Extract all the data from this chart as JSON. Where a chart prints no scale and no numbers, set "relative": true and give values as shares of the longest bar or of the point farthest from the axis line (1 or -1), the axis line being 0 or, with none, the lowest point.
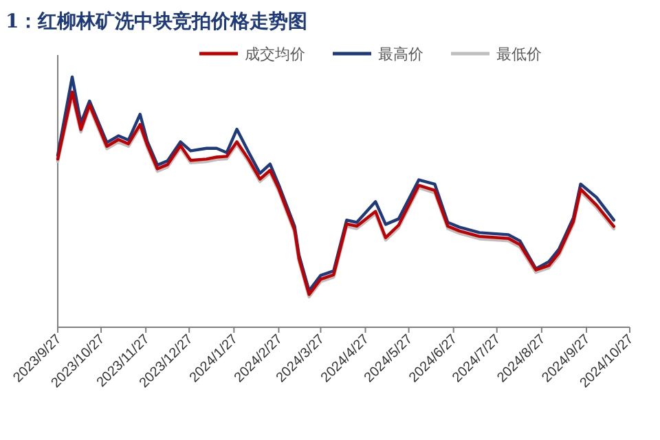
{
  "chart_data": {
    "type": "line",
    "title": "1：红柳林矿洗中块竞拍价格走势图",
    "relative": true,
    "legend": "top",
    "x": [
      "2023-09-27",
      "2023-10-07",
      "2023-10-13",
      "2023-10-19",
      "2023-10-31",
      "2023-11-08",
      "2023-11-15",
      "2023-11-23",
      "2023-11-28",
      "2023-12-05",
      "2023-12-12",
      "2023-12-21",
      "2023-12-28",
      "2024-01-08",
      "2024-01-15",
      "2024-01-22",
      "2024-01-29",
      "2024-02-06",
      "2024-02-14",
      "2024-02-21",
      "2024-02-27",
      "2024-03-09",
      "2024-03-12",
      "2024-03-19",
      "2024-03-27",
      "2024-04-05",
      "2024-04-14",
      "2024-04-21",
      "2024-05-04",
      "2024-05-11",
      "2024-05-20",
      "2024-06-03",
      "2024-06-14",
      "2024-06-23",
      "2024-07-01",
      "2024-07-15",
      "2024-08-04",
      "2024-08-12",
      "2024-08-23",
      "2024-09-01",
      "2024-09-08",
      "2024-09-18",
      "2024-09-23",
      "2024-10-04",
      "2024-10-16"
    ],
    "xlim": [
      "2023-09-27",
      "2024-10-27"
    ],
    "xticks": [
      {
        "value": "2023-09-27",
        "label": "2023/9/27"
      },
      {
        "value": "2023-10-27",
        "label": "2023/10/27"
      },
      {
        "value": "2023-11-27",
        "label": "2023/11/27"
      },
      {
        "value": "2023-12-27",
        "label": "2023/12/27"
      },
      {
        "value": "2024-01-27",
        "label": "2024/1/27"
      },
      {
        "value": "2024-02-27",
        "label": "2024/2/27"
      },
      {
        "value": "2024-03-27",
        "label": "2024/3/27"
      },
      {
        "value": "2024-04-27",
        "label": "2024/4/27"
      },
      {
        "value": "2024-05-27",
        "label": "2024/5/27"
      },
      {
        "value": "2024-06-27",
        "label": "2024/6/27"
      },
      {
        "value": "2024-07-27",
        "label": "2024/7/27"
      },
      {
        "value": "2024-08-27",
        "label": "2024/8/27"
      },
      {
        "value": "2024-09-27",
        "label": "2024/9/27"
      },
      {
        "value": "2024-10-27",
        "label": "2024/10/27"
      }
    ],
    "series": [
      {
        "name": "成交均价",
        "color": "#c00000",
        "values": [
          0.672,
          0.94,
          0.79,
          0.889,
          0.723,
          0.75,
          0.733,
          0.81,
          0.728,
          0.633,
          0.65,
          0.726,
          0.667,
          0.672,
          0.68,
          0.683,
          0.741,
          0.672,
          0.592,
          0.627,
          0.554,
          0.388,
          0.274,
          0.131,
          0.192,
          0.21,
          0.413,
          0.404,
          0.463,
          0.358,
          0.408,
          0.567,
          0.547,
          0.404,
          0.385,
          0.363,
          0.355,
          0.33,
          0.229,
          0.247,
          0.297,
          0.423,
          0.552,
          0.488,
          0.403
        ]
      },
      {
        "name": "最高价",
        "color": "#1f3a7a",
        "values": [
          0.687,
          1.0,
          0.816,
          0.904,
          0.738,
          0.765,
          0.748,
          0.851,
          0.743,
          0.648,
          0.665,
          0.741,
          0.705,
          0.715,
          0.715,
          0.698,
          0.791,
          0.701,
          0.615,
          0.652,
          0.569,
          0.403,
          0.289,
          0.146,
          0.207,
          0.225,
          0.428,
          0.419,
          0.502,
          0.411,
          0.433,
          0.589,
          0.572,
          0.419,
          0.4,
          0.378,
          0.37,
          0.345,
          0.234,
          0.262,
          0.312,
          0.438,
          0.572,
          0.519,
          0.428
        ]
      },
      {
        "name": "最低价",
        "color": "#bfbfbf",
        "values": [
          0.662,
          0.925,
          0.78,
          0.879,
          0.713,
          0.74,
          0.723,
          0.8,
          0.718,
          0.623,
          0.64,
          0.716,
          0.657,
          0.662,
          0.67,
          0.673,
          0.731,
          0.662,
          0.582,
          0.617,
          0.544,
          0.378,
          0.264,
          0.121,
          0.182,
          0.2,
          0.403,
          0.394,
          0.453,
          0.348,
          0.398,
          0.557,
          0.537,
          0.394,
          0.375,
          0.353,
          0.345,
          0.32,
          0.219,
          0.237,
          0.287,
          0.413,
          0.542,
          0.478,
          0.393
        ]
      }
    ]
  }
}
